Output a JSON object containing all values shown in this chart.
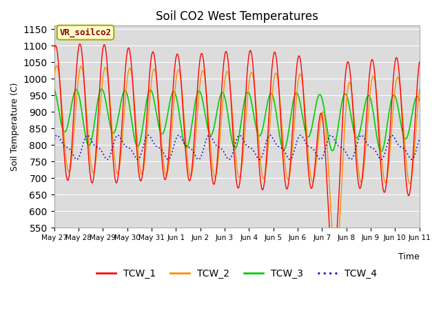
{
  "title": "Soil CO2 West Temperatures",
  "xlabel": "Time",
  "ylabel": "Soil Temperature (C)",
  "ylim": [
    550,
    1160
  ],
  "yticks": [
    550,
    600,
    650,
    700,
    750,
    800,
    850,
    900,
    950,
    1000,
    1050,
    1100,
    1150
  ],
  "annotation_text": "VR_soilco2",
  "colors": {
    "TCW_1": "#ff0000",
    "TCW_2": "#ff8c00",
    "TCW_3": "#00cc00",
    "TCW_4": "#0000cc"
  },
  "bg_color": "#dcdcdc",
  "date_labels": [
    "May 27",
    "May 28",
    "May 29",
    "May 30",
    "May 31",
    "Jun 1",
    "Jun 2",
    "Jun 3",
    "Jun 4",
    "Jun 5",
    "Jun 6",
    "Jun 7",
    "Jun 8",
    "Jun 9",
    "Jun 10",
    "Jun 11"
  ],
  "n_days": 15,
  "samples_per_day": 200
}
